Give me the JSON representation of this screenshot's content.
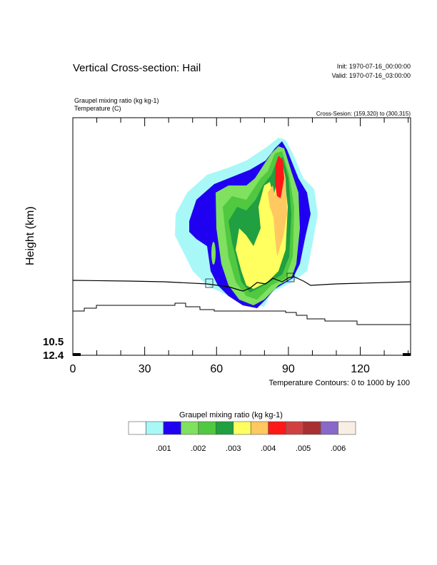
{
  "chart_data": {
    "type": "heatmap",
    "title": "Vertical Cross-section: Hail",
    "init": "Init: 1970-07-16_00:00:00",
    "valid": "Valid: 1970-07-16_03:00:00",
    "field1": "Graupel mixing ratio   (kg kg-1)",
    "field2": "Temperature   (C)",
    "cross_section": "Cross-Sesion: (159,320) to (300,315)",
    "ylabel": "Height (km)",
    "y_tick_labels": [
      "10.5",
      "12.4"
    ],
    "xlim": [
      0,
      141
    ],
    "x_ticks": [
      0,
      30,
      60,
      90,
      120
    ],
    "x_tick_labels": [
      "0",
      "30",
      "60",
      "90",
      "120"
    ],
    "contour_info": "Temperature Contours: 0 to 1000 by 100",
    "colorbar": {
      "title": "Graupel mixing ratio  (kg kg-1)",
      "levels_step": 0.0005,
      "colors": [
        "#ffffff",
        "#a8f8f8",
        "#2000f0",
        "#80e060",
        "#50c840",
        "#20a040",
        "#ffff60",
        "#ffc860",
        "#ff1818",
        "#d04040",
        "#a83030",
        "#8868c8",
        "#f8eee4"
      ],
      "labels": [
        ".001",
        ".002",
        ".003",
        ".004",
        ".005",
        ".006"
      ]
    }
  }
}
